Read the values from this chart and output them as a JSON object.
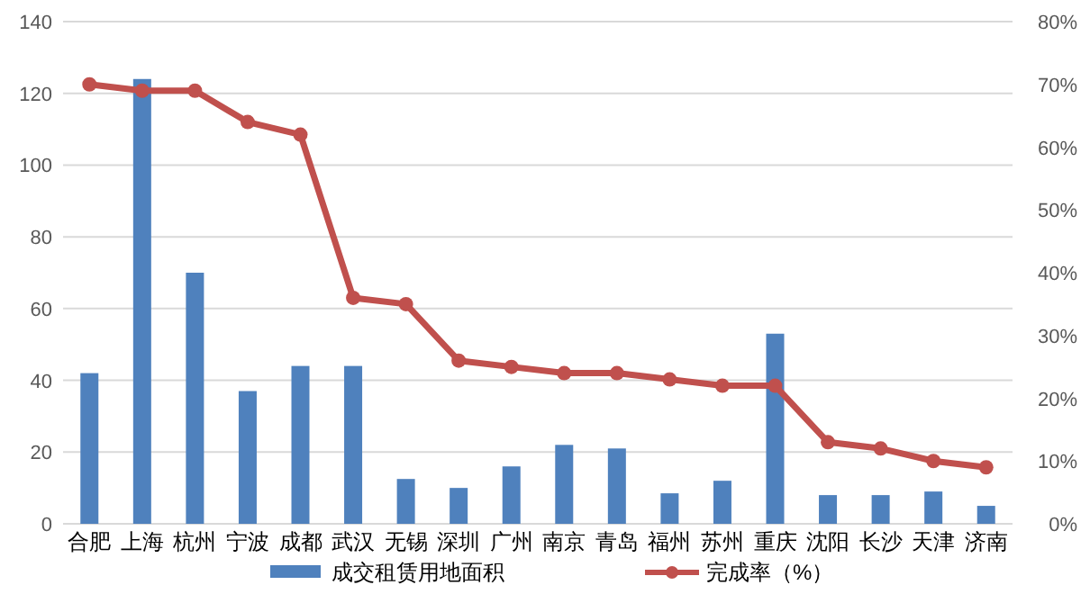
{
  "chart_data": {
    "type": "bar",
    "categories": [
      "合肥",
      "上海",
      "杭州",
      "宁波",
      "成都",
      "武汉",
      "无锡",
      "深圳",
      "广州",
      "南京",
      "青岛",
      "福州",
      "苏州",
      "重庆",
      "沈阳",
      "长沙",
      "天津",
      "济南"
    ],
    "series": [
      {
        "name": "成交租赁用地面积",
        "color": "#4f81bd",
        "values": [
          42,
          124,
          70,
          37,
          44,
          44,
          12.5,
          10,
          16,
          22,
          21,
          8.5,
          12,
          53,
          8,
          8,
          9,
          5
        ]
      },
      {
        "name": "完成率（%）",
        "type": "line",
        "axis": "y2",
        "color": "#c0504d",
        "marker": "circle",
        "values": [
          70,
          69,
          69,
          64,
          62,
          36,
          35,
          26,
          25,
          24,
          24,
          23,
          22,
          22,
          13,
          12,
          10,
          9
        ]
      }
    ],
    "ylim": [
      0,
      140
    ],
    "yticks": [
      0,
      20,
      40,
      60,
      80,
      100,
      120,
      140
    ],
    "y2lim": [
      0,
      80
    ],
    "y2ticks": [
      {
        "value": 0,
        "label": "0%"
      },
      {
        "value": 10,
        "label": "10%"
      },
      {
        "value": 20,
        "label": "20%"
      },
      {
        "value": 30,
        "label": "30%"
      },
      {
        "value": 40,
        "label": "40%"
      },
      {
        "value": 50,
        "label": "50%"
      },
      {
        "value": 60,
        "label": "60%"
      },
      {
        "value": 70,
        "label": "70%"
      },
      {
        "value": 80,
        "label": "80%"
      }
    ],
    "grid": "y",
    "legend": "bottom"
  }
}
